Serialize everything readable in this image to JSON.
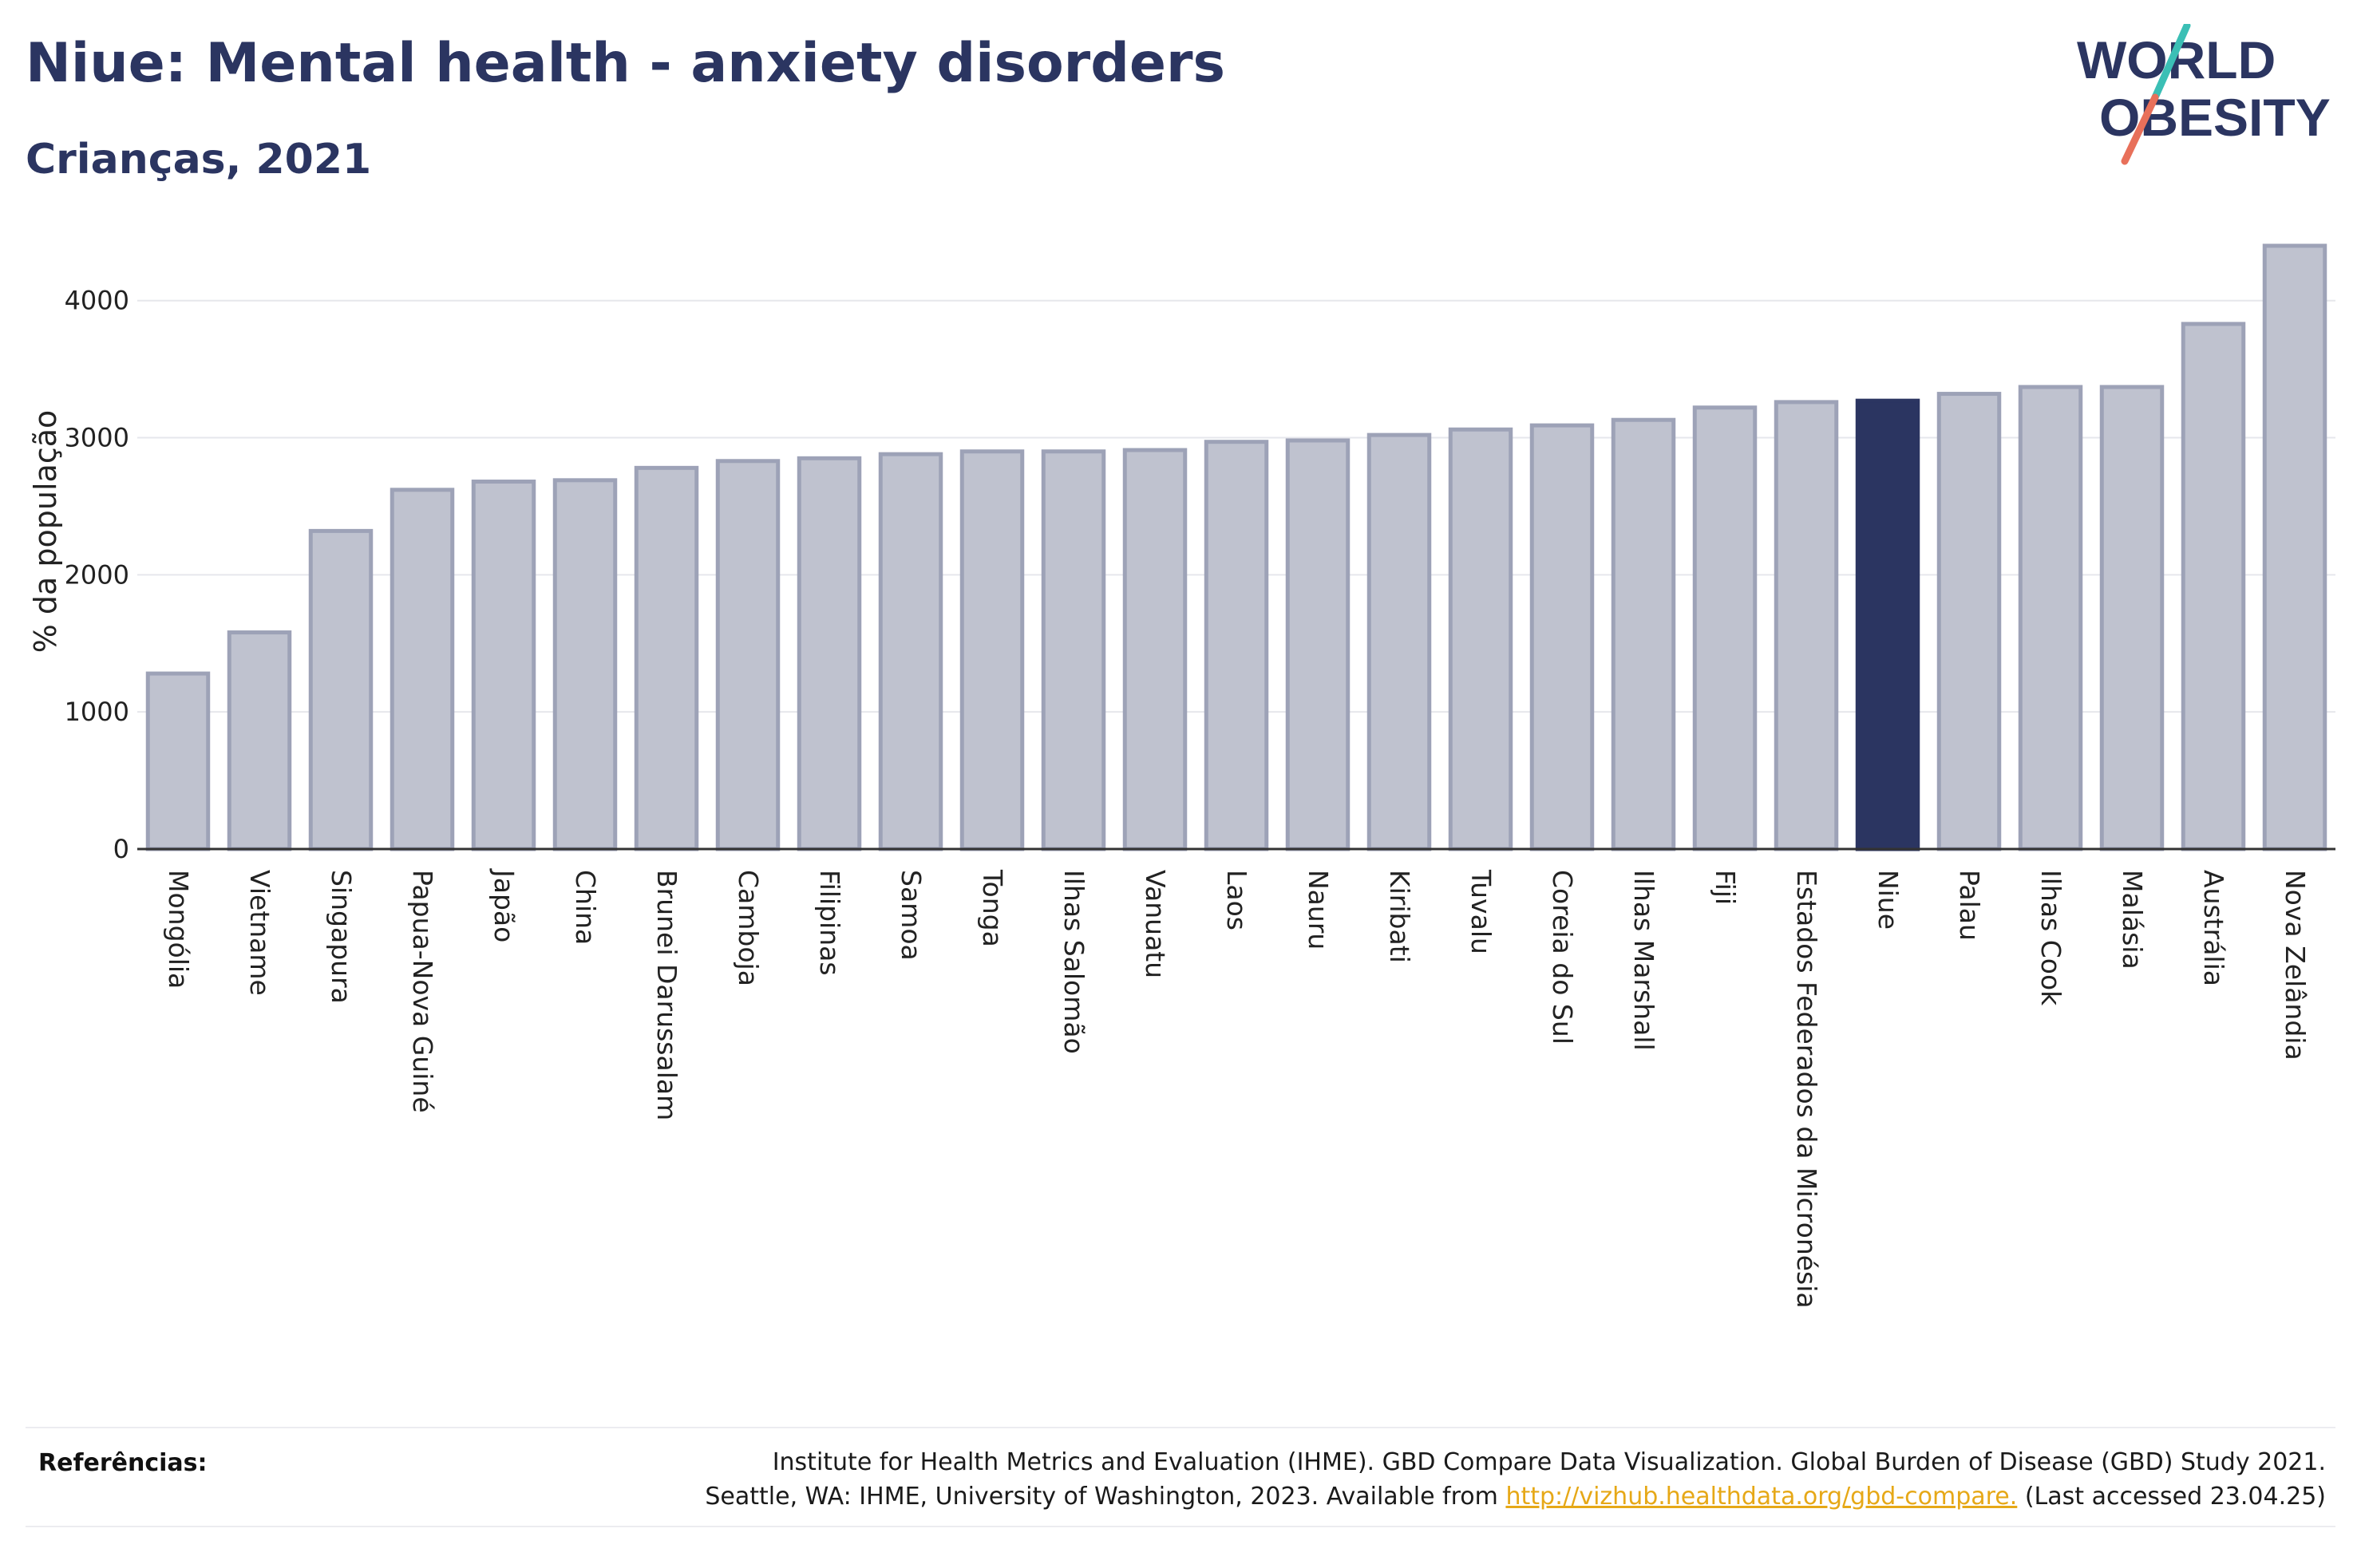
{
  "header": {
    "title": "Niue: Mental health - anxiety disorders",
    "subtitle": "Crianças, 2021"
  },
  "logo": {
    "line1": "WORLD",
    "line2": "OBESITY",
    "colors": {
      "text": "#2b3561",
      "slash_top": "#3bbfb5",
      "slash_bottom": "#e8705a"
    }
  },
  "chart_data": {
    "type": "bar",
    "ylabel": "% da população",
    "xlabel": "",
    "ylim": [
      0,
      4400
    ],
    "yticks": [
      0,
      1000,
      2000,
      3000,
      4000
    ],
    "grid": true,
    "highlight": "Niue",
    "colors": {
      "bar": "#bfc2cf",
      "bar_edge": "#9da2b7",
      "highlight": "#2b3561"
    },
    "categories": [
      "Mongólia",
      "Vietname",
      "Singapura",
      "Papua-Nova Guiné",
      "Japão",
      "China",
      "Brunei Darussalam",
      "Camboja",
      "Filipinas",
      "Samoa",
      "Tonga",
      "Ilhas Salomão",
      "Vanuatu",
      "Laos",
      "Nauru",
      "Kiribati",
      "Tuvalu",
      "Coreia do Sul",
      "Ilhas Marshall",
      "Fiji",
      "Estados Federados da Micronésia",
      "Niue",
      "Palau",
      "Ilhas Cook",
      "Malásia",
      "Austrália",
      "Nova Zelândia"
    ],
    "values": [
      1280,
      1580,
      2320,
      2620,
      2680,
      2690,
      2780,
      2830,
      2850,
      2880,
      2900,
      2900,
      2910,
      2970,
      2980,
      3020,
      3060,
      3090,
      3130,
      3220,
      3260,
      3270,
      3320,
      3370,
      3370,
      3830,
      4400
    ]
  },
  "references": {
    "label": "Referências:",
    "line1": "Institute for Health Metrics and Evaluation (IHME). GBD Compare Data Visualization. Global Burden of Disease (GBD) Study 2021.",
    "line2_prefix": "Seattle, WA: IHME, University of Washington, 2023. Available from",
    "link": "http://vizhub.healthdata.org/gbd-compare.",
    "line2_suffix": "(Last accessed 23.04.25)"
  }
}
